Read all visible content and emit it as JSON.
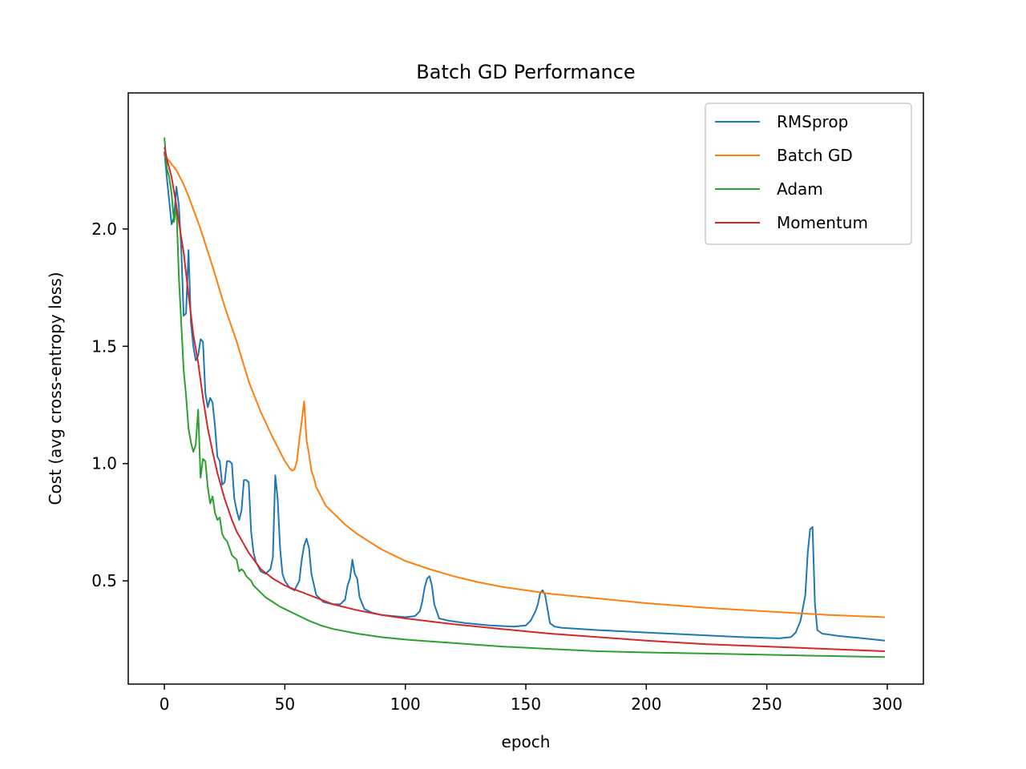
{
  "chart_data": {
    "type": "line",
    "title": "Batch GD Performance",
    "xlabel": "epoch",
    "ylabel": "Cost (avg cross-entropy loss)",
    "xlim": [
      -15,
      315
    ],
    "ylim": [
      0.06,
      2.58
    ],
    "xticks": [
      0,
      50,
      100,
      150,
      200,
      250,
      300
    ],
    "yticks": [
      0.5,
      1.0,
      1.5,
      2.0
    ],
    "xtick_labels": [
      "0",
      "50",
      "100",
      "150",
      "200",
      "250",
      "300"
    ],
    "ytick_labels": [
      "0.5",
      "1.0",
      "1.5",
      "2.0"
    ],
    "grid": false,
    "legend_position": "top-right",
    "series": [
      {
        "name": "RMSprop",
        "color": "#1f77b4",
        "points": [
          [
            0,
            2.33
          ],
          [
            1,
            2.22
          ],
          [
            2,
            2.12
          ],
          [
            3,
            2.02
          ],
          [
            4,
            2.05
          ],
          [
            5,
            2.18
          ],
          [
            6,
            2.1
          ],
          [
            7,
            1.92
          ],
          [
            8,
            1.63
          ],
          [
            9,
            1.64
          ],
          [
            10,
            1.91
          ],
          [
            11,
            1.6
          ],
          [
            12,
            1.5
          ],
          [
            13,
            1.44
          ],
          [
            14,
            1.46
          ],
          [
            15,
            1.53
          ],
          [
            16,
            1.52
          ],
          [
            17,
            1.3
          ],
          [
            18,
            1.24
          ],
          [
            19,
            1.28
          ],
          [
            20,
            1.26
          ],
          [
            21,
            1.16
          ],
          [
            22,
            1.03
          ],
          [
            23,
            1.01
          ],
          [
            24,
            0.91
          ],
          [
            25,
            0.92
          ],
          [
            26,
            1.01
          ],
          [
            27,
            1.01
          ],
          [
            28,
            1.0
          ],
          [
            29,
            0.85
          ],
          [
            30,
            0.8
          ],
          [
            31,
            0.76
          ],
          [
            32,
            0.8
          ],
          [
            33,
            0.93
          ],
          [
            34,
            0.93
          ],
          [
            35,
            0.92
          ],
          [
            36,
            0.71
          ],
          [
            37,
            0.62
          ],
          [
            38,
            0.58
          ],
          [
            40,
            0.54
          ],
          [
            42,
            0.53
          ],
          [
            44,
            0.55
          ],
          [
            45,
            0.6
          ],
          [
            46,
            0.95
          ],
          [
            47,
            0.85
          ],
          [
            48,
            0.64
          ],
          [
            49,
            0.53
          ],
          [
            50,
            0.5
          ],
          [
            52,
            0.47
          ],
          [
            54,
            0.46
          ],
          [
            56,
            0.5
          ],
          [
            57,
            0.59
          ],
          [
            58,
            0.65
          ],
          [
            59,
            0.68
          ],
          [
            60,
            0.64
          ],
          [
            61,
            0.53
          ],
          [
            63,
            0.44
          ],
          [
            66,
            0.41
          ],
          [
            70,
            0.4
          ],
          [
            73,
            0.4
          ],
          [
            75,
            0.42
          ],
          [
            76,
            0.48
          ],
          [
            77,
            0.51
          ],
          [
            78,
            0.59
          ],
          [
            79,
            0.53
          ],
          [
            80,
            0.51
          ],
          [
            81,
            0.43
          ],
          [
            83,
            0.38
          ],
          [
            86,
            0.365
          ],
          [
            90,
            0.355
          ],
          [
            95,
            0.35
          ],
          [
            100,
            0.345
          ],
          [
            104,
            0.35
          ],
          [
            106,
            0.37
          ],
          [
            107,
            0.41
          ],
          [
            108,
            0.47
          ],
          [
            109,
            0.51
          ],
          [
            110,
            0.52
          ],
          [
            111,
            0.48
          ],
          [
            112,
            0.4
          ],
          [
            114,
            0.34
          ],
          [
            118,
            0.33
          ],
          [
            125,
            0.32
          ],
          [
            135,
            0.31
          ],
          [
            145,
            0.305
          ],
          [
            150,
            0.31
          ],
          [
            152,
            0.33
          ],
          [
            154,
            0.37
          ],
          [
            155,
            0.4
          ],
          [
            156,
            0.45
          ],
          [
            157,
            0.46
          ],
          [
            158,
            0.44
          ],
          [
            159,
            0.38
          ],
          [
            160,
            0.32
          ],
          [
            162,
            0.305
          ],
          [
            165,
            0.3
          ],
          [
            180,
            0.29
          ],
          [
            200,
            0.28
          ],
          [
            220,
            0.27
          ],
          [
            240,
            0.26
          ],
          [
            255,
            0.255
          ],
          [
            260,
            0.26
          ],
          [
            262,
            0.28
          ],
          [
            264,
            0.33
          ],
          [
            266,
            0.44
          ],
          [
            267,
            0.62
          ],
          [
            268,
            0.72
          ],
          [
            269,
            0.73
          ],
          [
            270,
            0.4
          ],
          [
            271,
            0.29
          ],
          [
            273,
            0.275
          ],
          [
            280,
            0.265
          ],
          [
            290,
            0.255
          ],
          [
            299,
            0.245
          ]
        ]
      },
      {
        "name": "Batch GD",
        "color": "#ff7f0e",
        "points": [
          [
            0,
            2.31
          ],
          [
            2,
            2.29
          ],
          [
            5,
            2.25
          ],
          [
            8,
            2.19
          ],
          [
            10,
            2.14
          ],
          [
            15,
            2.0
          ],
          [
            20,
            1.84
          ],
          [
            25,
            1.67
          ],
          [
            30,
            1.52
          ],
          [
            35,
            1.35
          ],
          [
            40,
            1.22
          ],
          [
            45,
            1.11
          ],
          [
            48,
            1.05
          ],
          [
            50,
            1.01
          ],
          [
            52,
            0.98
          ],
          [
            53,
            0.97
          ],
          [
            54,
            0.975
          ],
          [
            55,
            1.01
          ],
          [
            56,
            1.1
          ],
          [
            57,
            1.18
          ],
          [
            58,
            1.265
          ],
          [
            59,
            1.1
          ],
          [
            60,
            1.04
          ],
          [
            61,
            0.97
          ],
          [
            62,
            0.94
          ],
          [
            63,
            0.9
          ],
          [
            65,
            0.86
          ],
          [
            67,
            0.82
          ],
          [
            70,
            0.79
          ],
          [
            75,
            0.74
          ],
          [
            80,
            0.7
          ],
          [
            90,
            0.635
          ],
          [
            100,
            0.585
          ],
          [
            110,
            0.55
          ],
          [
            120,
            0.52
          ],
          [
            130,
            0.495
          ],
          [
            140,
            0.475
          ],
          [
            150,
            0.46
          ],
          [
            160,
            0.445
          ],
          [
            175,
            0.43
          ],
          [
            200,
            0.405
          ],
          [
            225,
            0.385
          ],
          [
            250,
            0.37
          ],
          [
            275,
            0.355
          ],
          [
            299,
            0.345
          ]
        ]
      },
      {
        "name": "Adam",
        "color": "#2ca02c",
        "points": [
          [
            0,
            2.39
          ],
          [
            1,
            2.26
          ],
          [
            2,
            2.22
          ],
          [
            3,
            2.15
          ],
          [
            4,
            2.03
          ],
          [
            5,
            2.1
          ],
          [
            6,
            1.8
          ],
          [
            7,
            1.6
          ],
          [
            8,
            1.4
          ],
          [
            9,
            1.29
          ],
          [
            10,
            1.15
          ],
          [
            11,
            1.09
          ],
          [
            12,
            1.05
          ],
          [
            13,
            1.08
          ],
          [
            14,
            1.23
          ],
          [
            15,
            0.94
          ],
          [
            16,
            1.02
          ],
          [
            17,
            1.01
          ],
          [
            18,
            0.9
          ],
          [
            19,
            0.83
          ],
          [
            20,
            0.86
          ],
          [
            21,
            0.79
          ],
          [
            22,
            0.76
          ],
          [
            23,
            0.77
          ],
          [
            24,
            0.7
          ],
          [
            25,
            0.68
          ],
          [
            26,
            0.67
          ],
          [
            27,
            0.64
          ],
          [
            28,
            0.61
          ],
          [
            29,
            0.6
          ],
          [
            30,
            0.59
          ],
          [
            31,
            0.54
          ],
          [
            32,
            0.55
          ],
          [
            33,
            0.54
          ],
          [
            34,
            0.52
          ],
          [
            35,
            0.51
          ],
          [
            36,
            0.5
          ],
          [
            37,
            0.48
          ],
          [
            38,
            0.47
          ],
          [
            40,
            0.45
          ],
          [
            42,
            0.43
          ],
          [
            45,
            0.41
          ],
          [
            48,
            0.39
          ],
          [
            50,
            0.38
          ],
          [
            55,
            0.355
          ],
          [
            60,
            0.33
          ],
          [
            65,
            0.31
          ],
          [
            70,
            0.295
          ],
          [
            80,
            0.275
          ],
          [
            90,
            0.26
          ],
          [
            100,
            0.25
          ],
          [
            120,
            0.235
          ],
          [
            140,
            0.22
          ],
          [
            160,
            0.21
          ],
          [
            180,
            0.2
          ],
          [
            200,
            0.195
          ],
          [
            225,
            0.19
          ],
          [
            250,
            0.185
          ],
          [
            275,
            0.18
          ],
          [
            299,
            0.175
          ]
        ]
      },
      {
        "name": "Momentum",
        "color": "#d62728",
        "points": [
          [
            0,
            2.35
          ],
          [
            1,
            2.3
          ],
          [
            2,
            2.26
          ],
          [
            3,
            2.22
          ],
          [
            4,
            2.16
          ],
          [
            5,
            2.1
          ],
          [
            6,
            2.03
          ],
          [
            8,
            1.9
          ],
          [
            10,
            1.72
          ],
          [
            12,
            1.55
          ],
          [
            14,
            1.43
          ],
          [
            16,
            1.28
          ],
          [
            18,
            1.15
          ],
          [
            20,
            1.05
          ],
          [
            22,
            0.96
          ],
          [
            25,
            0.85
          ],
          [
            28,
            0.76
          ],
          [
            30,
            0.71
          ],
          [
            35,
            0.62
          ],
          [
            40,
            0.55
          ],
          [
            45,
            0.51
          ],
          [
            50,
            0.48
          ],
          [
            55,
            0.46
          ],
          [
            60,
            0.44
          ],
          [
            70,
            0.4
          ],
          [
            80,
            0.375
          ],
          [
            90,
            0.355
          ],
          [
            100,
            0.34
          ],
          [
            120,
            0.315
          ],
          [
            140,
            0.295
          ],
          [
            160,
            0.275
          ],
          [
            180,
            0.26
          ],
          [
            200,
            0.245
          ],
          [
            225,
            0.23
          ],
          [
            250,
            0.22
          ],
          [
            275,
            0.21
          ],
          [
            299,
            0.2
          ]
        ]
      }
    ]
  }
}
